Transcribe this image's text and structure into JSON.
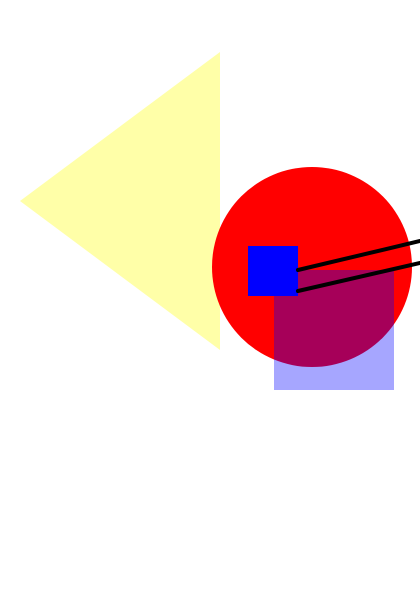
{
  "canvas": {
    "background": "#ffffff"
  },
  "shapes": {
    "triangle": {
      "name": "yellow-triangle",
      "fill": "#ffff99",
      "opacity": 0.85
    },
    "circle": {
      "name": "red-circle",
      "fill": "#ff0000",
      "opacity": 1
    },
    "blue_square": {
      "name": "blue-square",
      "fill": "#0000ff",
      "opacity": 1
    },
    "translucent_rect": {
      "name": "translucent-blue-rectangle",
      "fill": "#0000ff",
      "opacity": 0.35
    },
    "line_upper": {
      "name": "upper-line",
      "stroke": "#000000"
    },
    "line_lower": {
      "name": "lower-line",
      "stroke": "#000000"
    }
  }
}
